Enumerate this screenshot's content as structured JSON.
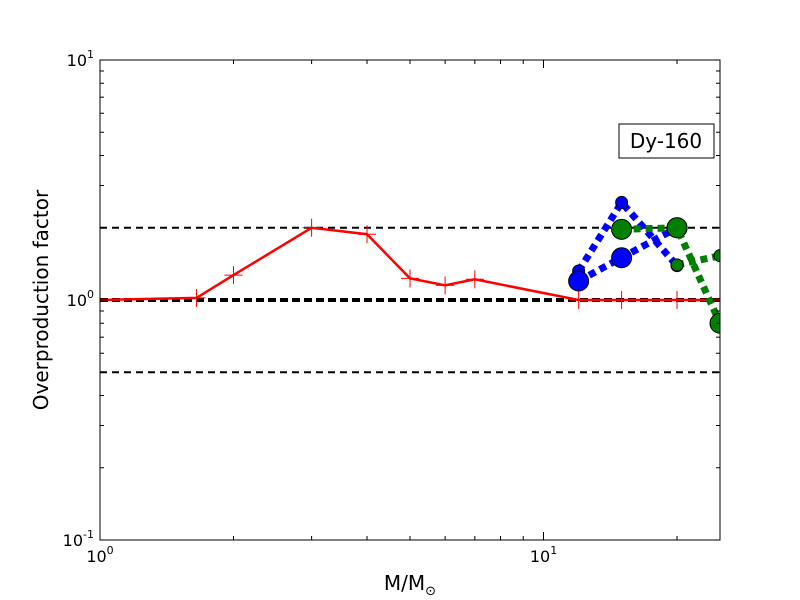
{
  "chart_data": {
    "type": "line",
    "title": "",
    "xlabel": "M/M",
    "xlabel_sub": "⊙",
    "ylabel": "Overproduction factor",
    "xscale": "log",
    "yscale": "log",
    "xlim": [
      1,
      25
    ],
    "ylim": [
      0.1,
      10
    ],
    "x_ticks": [
      {
        "value": 1,
        "base": "10",
        "exp": "0"
      },
      {
        "value": 10,
        "base": "10",
        "exp": "1"
      }
    ],
    "y_ticks": [
      {
        "value": 0.1,
        "base": "10",
        "exp": "-1"
      },
      {
        "value": 1,
        "base": "10",
        "exp": "0"
      },
      {
        "value": 10,
        "base": "10",
        "exp": "1"
      }
    ],
    "annotation": "Dy-160",
    "reference_lines": [
      {
        "y": 2.0,
        "style": "dashed",
        "color": "#000000"
      },
      {
        "y": 1.0,
        "style": "thick-dashed",
        "color": "#000000"
      },
      {
        "y": 0.5,
        "style": "dashed",
        "color": "#000000"
      }
    ],
    "series": [
      {
        "color": "#ff0000",
        "style": "solid",
        "marker": "plus",
        "x": [
          1.0,
          1.65,
          2.0,
          3.0,
          4.0,
          5.0,
          6.0,
          7.0,
          12.0,
          15.0,
          20.0,
          25.0
        ],
        "y": [
          1.0,
          1.02,
          1.27,
          2.0,
          1.88,
          1.23,
          1.15,
          1.22,
          1.0,
          1.0,
          1.0,
          1.0
        ]
      },
      {
        "color": "#0000ff",
        "style": "dotted",
        "marker": "circle",
        "x": [
          12.0,
          15.0,
          20.0
        ],
        "y": [
          1.32,
          2.55,
          1.39
        ],
        "marker_size": "small"
      },
      {
        "color": "#0000ff",
        "style": "dotted",
        "marker": "circle",
        "x": [
          12.0,
          15.0,
          20.0
        ],
        "y": [
          1.2,
          1.5,
          2.0
        ],
        "marker_size": "large"
      },
      {
        "color": "#008000",
        "style": "dotted",
        "marker": "circle",
        "x": [
          15.0,
          20.0,
          25.0
        ],
        "y": [
          1.97,
          2.0,
          0.8
        ],
        "marker_size": "large"
      },
      {
        "color": "#008000",
        "style": "dotted",
        "marker": "circle",
        "x": [
          20.0,
          25.0
        ],
        "y": [
          1.4,
          1.53
        ],
        "marker_size": "small"
      }
    ]
  }
}
